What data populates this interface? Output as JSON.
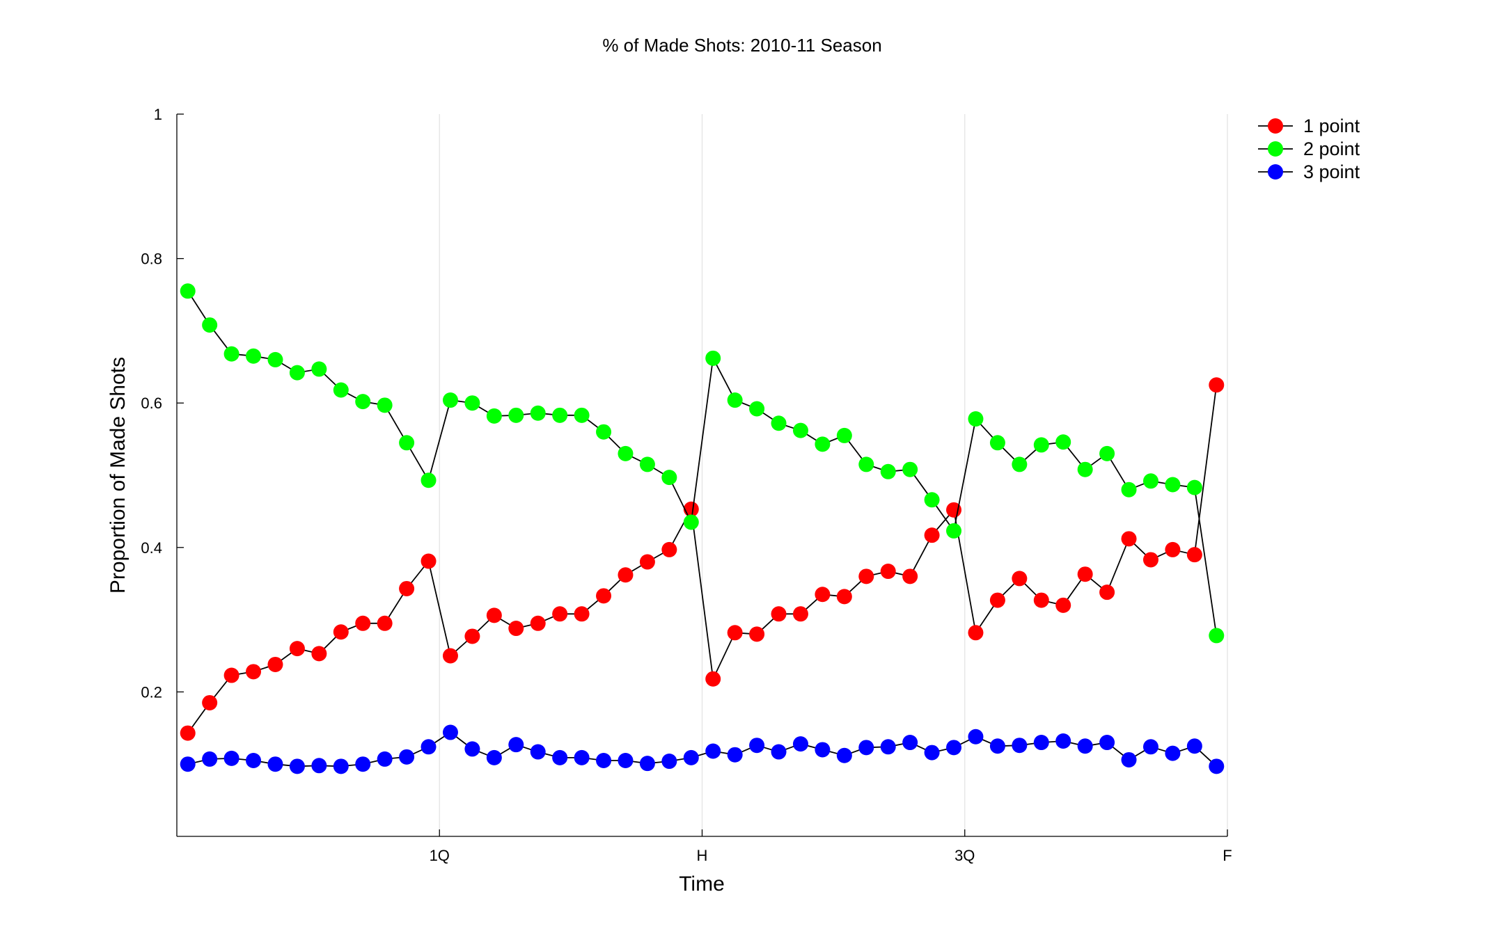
{
  "chart_data": {
    "type": "line",
    "title": "% of Made Shots: 2010-11 Season",
    "xlabel": "Time",
    "ylabel": "Proportion of Made Shots",
    "xlim": [
      0,
      48
    ],
    "ylim": [
      0,
      1
    ],
    "x_ticks": [
      {
        "value": 12,
        "label": "1Q"
      },
      {
        "value": 24,
        "label": "H"
      },
      {
        "value": 36,
        "label": "3Q"
      },
      {
        "value": 48,
        "label": "F"
      }
    ],
    "y_ticks": [
      {
        "value": 0.2,
        "label": "0.2"
      },
      {
        "value": 0.4,
        "label": "0.4"
      },
      {
        "value": 0.6,
        "label": "0.6"
      },
      {
        "value": 0.8,
        "label": "0.8"
      },
      {
        "value": 1.0,
        "label": "1"
      }
    ],
    "grid": "vertical lines at quarter ticks",
    "legend_position": "top-right",
    "x": [
      0.5,
      1.5,
      2.5,
      3.5,
      4.5,
      5.5,
      6.5,
      7.5,
      8.5,
      9.5,
      10.5,
      11.5,
      12.5,
      13.5,
      14.5,
      15.5,
      16.5,
      17.5,
      18.5,
      19.5,
      20.5,
      21.5,
      22.5,
      23.5,
      24.5,
      25.5,
      26.5,
      27.5,
      28.5,
      29.5,
      30.5,
      31.5,
      32.5,
      33.5,
      34.5,
      35.5,
      36.5,
      37.5,
      38.5,
      39.5,
      40.5,
      41.5,
      42.5,
      43.5,
      44.5,
      45.5,
      46.5,
      47.5
    ],
    "series": [
      {
        "name": "1 point",
        "color": "#ff0000",
        "values": [
          0.143,
          0.185,
          0.223,
          0.228,
          0.238,
          0.26,
          0.253,
          0.283,
          0.295,
          0.295,
          0.343,
          0.381,
          0.25,
          0.277,
          0.306,
          0.288,
          0.295,
          0.308,
          0.308,
          0.333,
          0.362,
          0.38,
          0.397,
          0.453,
          0.218,
          0.282,
          0.28,
          0.308,
          0.308,
          0.335,
          0.332,
          0.36,
          0.367,
          0.36,
          0.417,
          0.452,
          0.282,
          0.327,
          0.357,
          0.327,
          0.32,
          0.363,
          0.338,
          0.412,
          0.383,
          0.397,
          0.39,
          0.625
        ]
      },
      {
        "name": "2 point",
        "color": "#00ff00",
        "values": [
          0.755,
          0.708,
          0.668,
          0.665,
          0.66,
          0.642,
          0.647,
          0.618,
          0.602,
          0.597,
          0.545,
          0.493,
          0.604,
          0.6,
          0.582,
          0.583,
          0.586,
          0.583,
          0.583,
          0.56,
          0.53,
          0.515,
          0.497,
          0.435,
          0.662,
          0.604,
          0.592,
          0.572,
          0.562,
          0.543,
          0.555,
          0.515,
          0.505,
          0.508,
          0.466,
          0.423,
          0.578,
          0.545,
          0.515,
          0.542,
          0.546,
          0.508,
          0.53,
          0.48,
          0.492,
          0.487,
          0.483,
          0.278
        ]
      },
      {
        "name": "3 point",
        "color": "#0000ff",
        "values": [
          0.1,
          0.107,
          0.108,
          0.105,
          0.1,
          0.097,
          0.098,
          0.097,
          0.1,
          0.107,
          0.11,
          0.124,
          0.144,
          0.121,
          0.109,
          0.127,
          0.117,
          0.109,
          0.109,
          0.105,
          0.105,
          0.101,
          0.104,
          0.109,
          0.118,
          0.113,
          0.126,
          0.117,
          0.128,
          0.12,
          0.112,
          0.123,
          0.124,
          0.13,
          0.116,
          0.123,
          0.138,
          0.125,
          0.126,
          0.13,
          0.132,
          0.125,
          0.13,
          0.106,
          0.124,
          0.115,
          0.125,
          0.097
        ]
      }
    ]
  }
}
